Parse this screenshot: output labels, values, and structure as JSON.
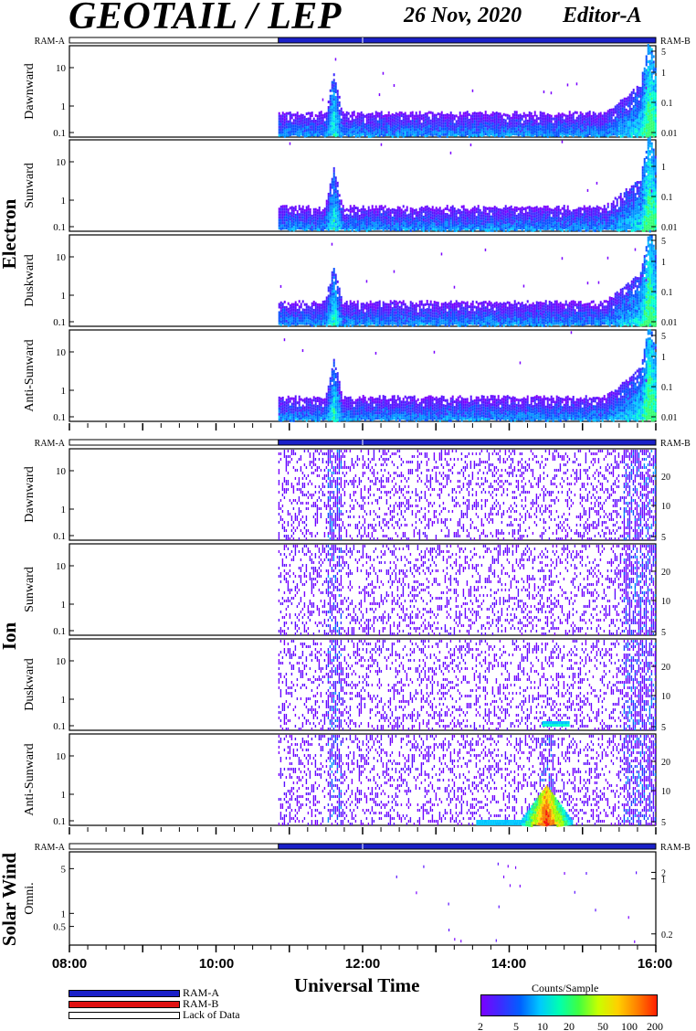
{
  "header": {
    "title": "GEOTAIL / LEP",
    "date": "26 Nov, 2020",
    "editor": "Editor-A"
  },
  "groups": {
    "electron": "Electron",
    "ion": "Ion",
    "solar_wind": "Solar Wind"
  },
  "status_labels": {
    "left": "RAM-A",
    "right": "RAM-B"
  },
  "x_axis": {
    "label": "Universal Time",
    "ticks": [
      "08:00",
      "10:00",
      "12:00",
      "14:00",
      "16:00"
    ],
    "range_hours": [
      8,
      16
    ]
  },
  "legend": {
    "ram_a": "RAM-A",
    "ram_b": "RAM-B",
    "lack_of_data": "Lack of Data",
    "ram_a_color": "#1a20c8",
    "ram_b_color": "#e01010"
  },
  "colorbar": {
    "title": "Counts/Sample",
    "ticks": [
      "2",
      "5",
      "10",
      "20",
      "50",
      "100",
      "200"
    ]
  },
  "chart_data": {
    "type": "heatmap",
    "data_start_hour": 10.85,
    "panels": [
      {
        "group": "Electron",
        "label": "Dawnward",
        "left_ticks": [
          "10",
          "1",
          "0.1"
        ],
        "right_ticks": [
          "5",
          "1",
          "0.1",
          "0.01"
        ],
        "bursts": [
          11.6,
          15.9
        ]
      },
      {
        "group": "Electron",
        "label": "Sunward",
        "left_ticks": [
          "10",
          "1",
          "0.1"
        ],
        "right_ticks": [
          "1",
          "0.1",
          "0.01"
        ],
        "bursts": [
          11.6,
          15.9
        ]
      },
      {
        "group": "Electron",
        "label": "Duskward",
        "left_ticks": [
          "10",
          "1",
          "0.1"
        ],
        "right_ticks": [
          "5",
          "1",
          "0.1",
          "0.01"
        ],
        "bursts": [
          11.6,
          15.9
        ]
      },
      {
        "group": "Electron",
        "label": "Anti-Sunward",
        "left_ticks": [
          "10",
          "1",
          "0.1"
        ],
        "right_ticks": [
          "5",
          "1",
          "0.1",
          "0.01"
        ],
        "bursts": [
          11.6,
          15.9
        ]
      },
      {
        "group": "Ion",
        "label": "Dawnward",
        "left_ticks": [
          "10",
          "1",
          "0.1"
        ],
        "right_ticks": [
          "20",
          "10",
          "5"
        ],
        "bursts": [
          11.6,
          15.8
        ]
      },
      {
        "group": "Ion",
        "label": "Sunward",
        "left_ticks": [
          "10",
          "1",
          "0.1"
        ],
        "right_ticks": [
          "20",
          "10",
          "5"
        ],
        "bursts": [
          11.6,
          15.8
        ]
      },
      {
        "group": "Ion",
        "label": "Duskward",
        "left_ticks": [
          "10",
          "1",
          "0.1"
        ],
        "right_ticks": [
          "20",
          "10",
          "5"
        ],
        "bursts": [
          11.6,
          15.8
        ]
      },
      {
        "group": "Ion",
        "label": "Anti-Sunward",
        "left_ticks": [
          "10",
          "1",
          "0.1"
        ],
        "right_ticks": [
          "20",
          "10",
          "5"
        ],
        "bursts": [
          11.6,
          14.5,
          15.8
        ]
      },
      {
        "group": "Solar Wind",
        "label": "Omni.",
        "left_ticks": [
          "5",
          "1",
          "0.5"
        ],
        "right_ticks": [
          "2",
          "1",
          "0.2"
        ],
        "bursts": []
      }
    ]
  }
}
